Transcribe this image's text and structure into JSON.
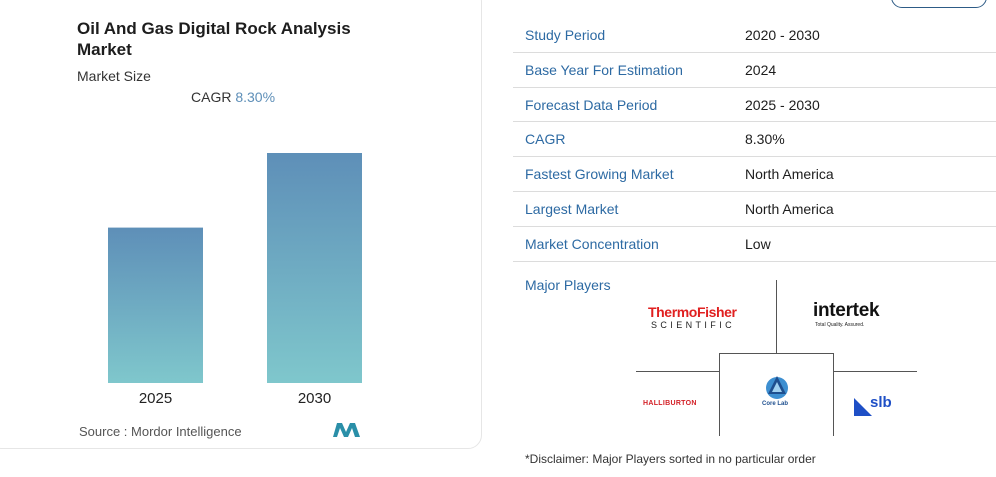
{
  "chart_card": {
    "title": "Oil And Gas Digital Rock Analysis Market",
    "subtitle": "Market Size",
    "cagr_label": "CAGR",
    "cagr_value": "8.30%",
    "source": "Source : Mordor Intelligence"
  },
  "chart_data": {
    "type": "bar",
    "title": "Oil And Gas Digital Rock Analysis Market",
    "subtitle": "Market Size",
    "categories": [
      "2025",
      "2030"
    ],
    "values": [
      1.0,
      1.48
    ],
    "grid": false,
    "gradient_colors": [
      "#5e8fb8",
      "#7fc7cc"
    ]
  },
  "summary": {
    "rows": [
      {
        "key": "Study Period",
        "value": "2020 - 2030"
      },
      {
        "key": "Base Year For Estimation",
        "value": "2024"
      },
      {
        "key": "Forecast Data Period",
        "value": "2025 - 2030"
      },
      {
        "key": "CAGR",
        "value": "8.30%"
      },
      {
        "key": "Fastest Growing Market",
        "value": "North America"
      },
      {
        "key": "Largest Market",
        "value": "North America"
      },
      {
        "key": "Market Concentration",
        "value": "Low"
      }
    ],
    "major_players_label": "Major Players"
  },
  "players": {
    "thermo_top": "ThermoFisher",
    "thermo_bottom": "SCIENTIFIC",
    "intertek": "intertek",
    "intertek_tag": "Total Quality. Assured.",
    "halliburton": "HALLIBURTON",
    "corelab": "Core Lab",
    "slb": "slb"
  },
  "disclaimer": "*Disclaimer: Major Players sorted in no particular order",
  "colors": {
    "accent": "#2d6aa3",
    "bar_top": "#5e8fb8",
    "bar_bottom": "#7fc7cc"
  }
}
